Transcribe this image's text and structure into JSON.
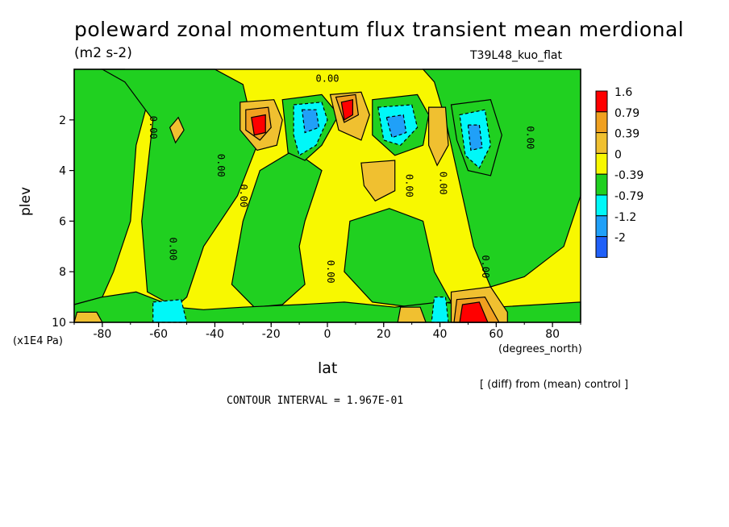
{
  "chart_data": {
    "type": "heatmap",
    "title": "poleward zonal momentum flux transient mean merdional",
    "units": "(m2 s-2)",
    "run": "T39L48_kuo_flat",
    "xlabel": "lat",
    "ylabel": "plev",
    "x_unit_label": "(degrees_north)",
    "y_unit_label": "(x1E4 Pa)",
    "xlim": [
      -90,
      90
    ],
    "ylim": [
      0,
      10
    ],
    "y_inverted": true,
    "x_ticks": [
      -80,
      -60,
      -40,
      -20,
      0,
      20,
      40,
      60,
      80
    ],
    "y_ticks": [
      2,
      4,
      6,
      8,
      10
    ],
    "diff_note": "[ (diff) from (mean) control ]",
    "contour_note": "CONTOUR INTERVAL = 1.967E-01",
    "legend": {
      "placement": "right",
      "labels": [
        "1.6",
        "0.79",
        "0.39",
        "0",
        "-0.39",
        "-0.79",
        "-1.2",
        "-2"
      ],
      "colors": [
        "#ff0000",
        "#f0a020",
        "#f0c030",
        "#f8f800",
        "#20d020",
        "#00f8f8",
        "#20a0f8",
        "#2060f8"
      ]
    },
    "contour_labels": [
      {
        "text": "0.00",
        "lat": -63,
        "p": 2.3,
        "rotate": 90
      },
      {
        "text": "0.00",
        "lat": -39,
        "p": 3.8,
        "rotate": 90
      },
      {
        "text": "0.00",
        "lat": -31,
        "p": 5.0,
        "rotate": 90
      },
      {
        "text": "0.00",
        "lat": -56,
        "p": 7.1,
        "rotate": 90
      },
      {
        "text": "0.00",
        "lat": 0,
        "p": 0.5,
        "rotate": 0
      },
      {
        "text": "0.00",
        "lat": 0,
        "p": 8.0,
        "rotate": 90
      },
      {
        "text": "0.00",
        "lat": 28,
        "p": 4.6,
        "rotate": 90
      },
      {
        "text": "0.00",
        "lat": 40,
        "p": 4.5,
        "rotate": 90
      },
      {
        "text": "0.00",
        "lat": 55,
        "p": 7.8,
        "rotate": 90
      },
      {
        "text": "0.00",
        "lat": 71,
        "p": 2.7,
        "rotate": 90
      }
    ],
    "regions": [
      {
        "level": -0.39,
        "pts": [
          [
            -90,
            0
          ],
          [
            -72,
            0
          ],
          [
            -62,
            0.5
          ],
          [
            -68,
            3
          ],
          [
            -70,
            6
          ],
          [
            -76,
            8
          ],
          [
            -80,
            9
          ],
          [
            -90,
            9.3
          ]
        ]
      },
      {
        "level": -0.39,
        "pts": [
          [
            -80,
            0
          ],
          [
            -40,
            0
          ],
          [
            -30,
            0.6
          ],
          [
            -25,
            3
          ],
          [
            -32,
            5
          ],
          [
            -44,
            7
          ],
          [
            -50,
            9
          ],
          [
            -54,
            9.4
          ],
          [
            -64,
            8.8
          ],
          [
            -66,
            6
          ],
          [
            -62,
            2
          ],
          [
            -72,
            0.5
          ]
        ]
      },
      {
        "level": -0.39,
        "pts": [
          [
            -24,
            4
          ],
          [
            -12,
            3.2
          ],
          [
            -2,
            4
          ],
          [
            -8,
            6
          ],
          [
            -10,
            7
          ],
          [
            -8,
            8.5
          ],
          [
            -16,
            9.3
          ],
          [
            -26,
            9.4
          ],
          [
            -34,
            8.5
          ],
          [
            -30,
            6
          ]
        ]
      },
      {
        "level": -0.39,
        "pts": [
          [
            8,
            6
          ],
          [
            22,
            5.5
          ],
          [
            34,
            6
          ],
          [
            38,
            8
          ],
          [
            44,
            9.2
          ],
          [
            30,
            9.4
          ],
          [
            16,
            9.2
          ],
          [
            6,
            8
          ]
        ]
      },
      {
        "level": -0.39,
        "pts": [
          [
            34,
            0
          ],
          [
            90,
            0
          ],
          [
            90,
            5
          ],
          [
            84,
            7
          ],
          [
            70,
            8.2
          ],
          [
            58,
            8.6
          ],
          [
            52,
            7
          ],
          [
            46,
            4
          ],
          [
            42,
            2
          ],
          [
            38,
            0.5
          ]
        ]
      },
      {
        "level": -0.39,
        "pts": [
          [
            -90,
            9.3
          ],
          [
            -80,
            9
          ],
          [
            -68,
            8.8
          ],
          [
            -54,
            9.4
          ],
          [
            -44,
            9.5
          ],
          [
            -30,
            9.4
          ],
          [
            -10,
            9.3
          ],
          [
            6,
            9.2
          ],
          [
            24,
            9.4
          ],
          [
            40,
            9.2
          ],
          [
            60,
            9.4
          ],
          [
            90,
            9.2
          ],
          [
            90,
            10
          ],
          [
            -90,
            10
          ]
        ]
      },
      {
        "level": -0.39,
        "pts": [
          [
            -16,
            1.2
          ],
          [
            -2,
            1
          ],
          [
            4,
            1.8
          ],
          [
            -2,
            3
          ],
          [
            -8,
            3.6
          ],
          [
            -14,
            3.3
          ]
        ]
      },
      {
        "level": -0.39,
        "pts": [
          [
            16,
            1.2
          ],
          [
            32,
            1
          ],
          [
            36,
            1.8
          ],
          [
            34,
            3
          ],
          [
            24,
            3.4
          ],
          [
            16,
            2.6
          ]
        ]
      },
      {
        "level": -0.39,
        "pts": [
          [
            44,
            1.4
          ],
          [
            58,
            1.2
          ],
          [
            62,
            2.6
          ],
          [
            58,
            4.2
          ],
          [
            50,
            4
          ],
          [
            46,
            2.8
          ]
        ]
      },
      {
        "level": -0.79,
        "pts": [
          [
            -12,
            1.4
          ],
          [
            -2,
            1.3
          ],
          [
            0,
            2
          ],
          [
            -4,
            3
          ],
          [
            -10,
            3.4
          ],
          [
            -12,
            2.6
          ]
        ]
      },
      {
        "level": -0.79,
        "pts": [
          [
            18,
            1.5
          ],
          [
            30,
            1.4
          ],
          [
            32,
            2.3
          ],
          [
            26,
            3
          ],
          [
            20,
            2.8
          ]
        ]
      },
      {
        "level": -0.79,
        "pts": [
          [
            47,
            1.8
          ],
          [
            56,
            1.6
          ],
          [
            58,
            3
          ],
          [
            54,
            3.9
          ],
          [
            49,
            3.4
          ]
        ]
      },
      {
        "level": -0.79,
        "pts": [
          [
            -62,
            9.2
          ],
          [
            -52,
            9.1
          ],
          [
            -50,
            10
          ],
          [
            -62,
            10
          ]
        ]
      },
      {
        "level": -0.79,
        "pts": [
          [
            38,
            9
          ],
          [
            42,
            9
          ],
          [
            43,
            10
          ],
          [
            37,
            10
          ]
        ]
      },
      {
        "level": -1.2,
        "pts": [
          [
            -9,
            1.6
          ],
          [
            -4,
            1.6
          ],
          [
            -3,
            2.3
          ],
          [
            -8,
            2.5
          ]
        ]
      },
      {
        "level": -1.2,
        "pts": [
          [
            21,
            1.9
          ],
          [
            27,
            1.8
          ],
          [
            28,
            2.5
          ],
          [
            23,
            2.7
          ]
        ]
      },
      {
        "level": -1.2,
        "pts": [
          [
            50,
            2.2
          ],
          [
            54,
            2.2
          ],
          [
            55,
            3.1
          ],
          [
            51,
            3.2
          ]
        ]
      },
      {
        "level": 0.39,
        "pts": [
          [
            -31,
            1.3
          ],
          [
            -19,
            1.2
          ],
          [
            -16,
            2
          ],
          [
            -18,
            3
          ],
          [
            -25,
            3.2
          ],
          [
            -31,
            2.4
          ]
        ]
      },
      {
        "level": 0.39,
        "pts": [
          [
            1,
            1.0
          ],
          [
            12,
            0.9
          ],
          [
            15,
            1.8
          ],
          [
            12,
            2.8
          ],
          [
            4,
            2.4
          ]
        ]
      },
      {
        "level": 0.39,
        "pts": [
          [
            12,
            3.7
          ],
          [
            24,
            3.6
          ],
          [
            24,
            4.8
          ],
          [
            17,
            5.2
          ],
          [
            13,
            4.6
          ]
        ]
      },
      {
        "level": 0.39,
        "pts": [
          [
            36,
            1.5
          ],
          [
            42,
            1.5
          ],
          [
            43,
            3
          ],
          [
            39,
            3.8
          ],
          [
            36,
            3
          ]
        ]
      },
      {
        "level": 0.39,
        "pts": [
          [
            -56,
            2.3
          ],
          [
            -53,
            1.9
          ],
          [
            -51,
            2.4
          ],
          [
            -54,
            2.9
          ]
        ]
      },
      {
        "level": 0.39,
        "pts": [
          [
            44,
            8.8
          ],
          [
            58,
            8.6
          ],
          [
            64,
            9.6
          ],
          [
            64,
            10
          ],
          [
            44,
            10
          ]
        ]
      },
      {
        "level": 0.39,
        "pts": [
          [
            26,
            9.4
          ],
          [
            33,
            9.4
          ],
          [
            35,
            10
          ],
          [
            25,
            10
          ]
        ]
      },
      {
        "level": 0.39,
        "pts": [
          [
            -89,
            9.6
          ],
          [
            -82,
            9.6
          ],
          [
            -80,
            10
          ],
          [
            -90,
            10
          ]
        ]
      },
      {
        "level": 0.79,
        "pts": [
          [
            -29,
            1.6
          ],
          [
            -21,
            1.5
          ],
          [
            -20,
            2.3
          ],
          [
            -24,
            2.8
          ],
          [
            -29,
            2.4
          ]
        ]
      },
      {
        "level": 0.79,
        "pts": [
          [
            3,
            1.1
          ],
          [
            10,
            1.0
          ],
          [
            11,
            1.8
          ],
          [
            6,
            2.1
          ]
        ]
      },
      {
        "level": 0.79,
        "pts": [
          [
            46,
            9.1
          ],
          [
            56,
            9.0
          ],
          [
            61,
            10
          ],
          [
            45,
            10
          ]
        ]
      },
      {
        "level": 1.6,
        "pts": [
          [
            -27,
            1.9
          ],
          [
            -22,
            1.8
          ],
          [
            -22,
            2.5
          ],
          [
            -26,
            2.6
          ]
        ]
      },
      {
        "level": 1.6,
        "pts": [
          [
            5,
            1.3
          ],
          [
            9,
            1.2
          ],
          [
            9,
            1.8
          ],
          [
            6,
            2.0
          ]
        ]
      },
      {
        "level": 1.6,
        "pts": [
          [
            48,
            9.3
          ],
          [
            54,
            9.2
          ],
          [
            57,
            10
          ],
          [
            47,
            10
          ]
        ]
      }
    ]
  }
}
